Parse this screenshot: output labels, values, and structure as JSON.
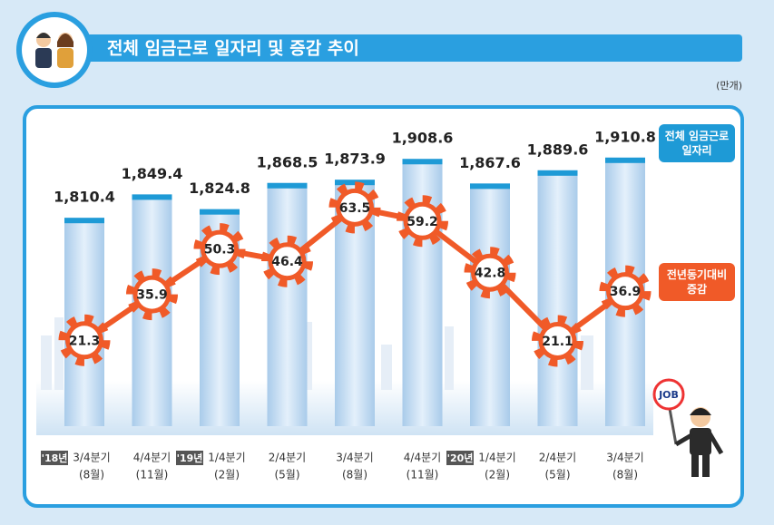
{
  "title": "전체 임금근로 일자리 및 증감 추이",
  "unit": "(만개)",
  "sign_text": "JOB",
  "chart_data": {
    "type": "bar-line",
    "categories": [
      "3/4분기",
      "4/4분기",
      "1/4분기",
      "2/4분기",
      "3/4분기",
      "4/4분기",
      "1/4분기",
      "2/4분기",
      "3/4분기"
    ],
    "sub_labels": [
      "(8월)",
      "(11월)",
      "(2월)",
      "(5월)",
      "(8월)",
      "(11월)",
      "(2월)",
      "(5월)",
      "(8월)"
    ],
    "year_labels": [
      "'18년",
      null,
      "'19년",
      null,
      null,
      null,
      "'20년",
      null,
      null
    ],
    "series": [
      {
        "name": "전체 임금근로 일자리",
        "type": "bar",
        "color": "#1e9ad6",
        "values": [
          1810.4,
          1849.4,
          1824.8,
          1868.5,
          1873.9,
          1908.6,
          1867.6,
          1889.6,
          1910.8
        ],
        "value_labels": [
          "1,810.4",
          "1,849.4",
          "1,824.8",
          "1,868.5",
          "1,873.9",
          "1,908.6",
          "1,867.6",
          "1,889.6",
          "1,910.8"
        ]
      },
      {
        "name": "전년동기대비 증감",
        "type": "line",
        "axis": "y2",
        "color": "#f05a28",
        "values": [
          21.3,
          35.9,
          50.3,
          46.4,
          63.5,
          59.2,
          42.8,
          21.1,
          36.9
        ]
      }
    ],
    "ylim": [
      1463,
      1977
    ],
    "y2lim": [
      -6,
      92
    ]
  }
}
